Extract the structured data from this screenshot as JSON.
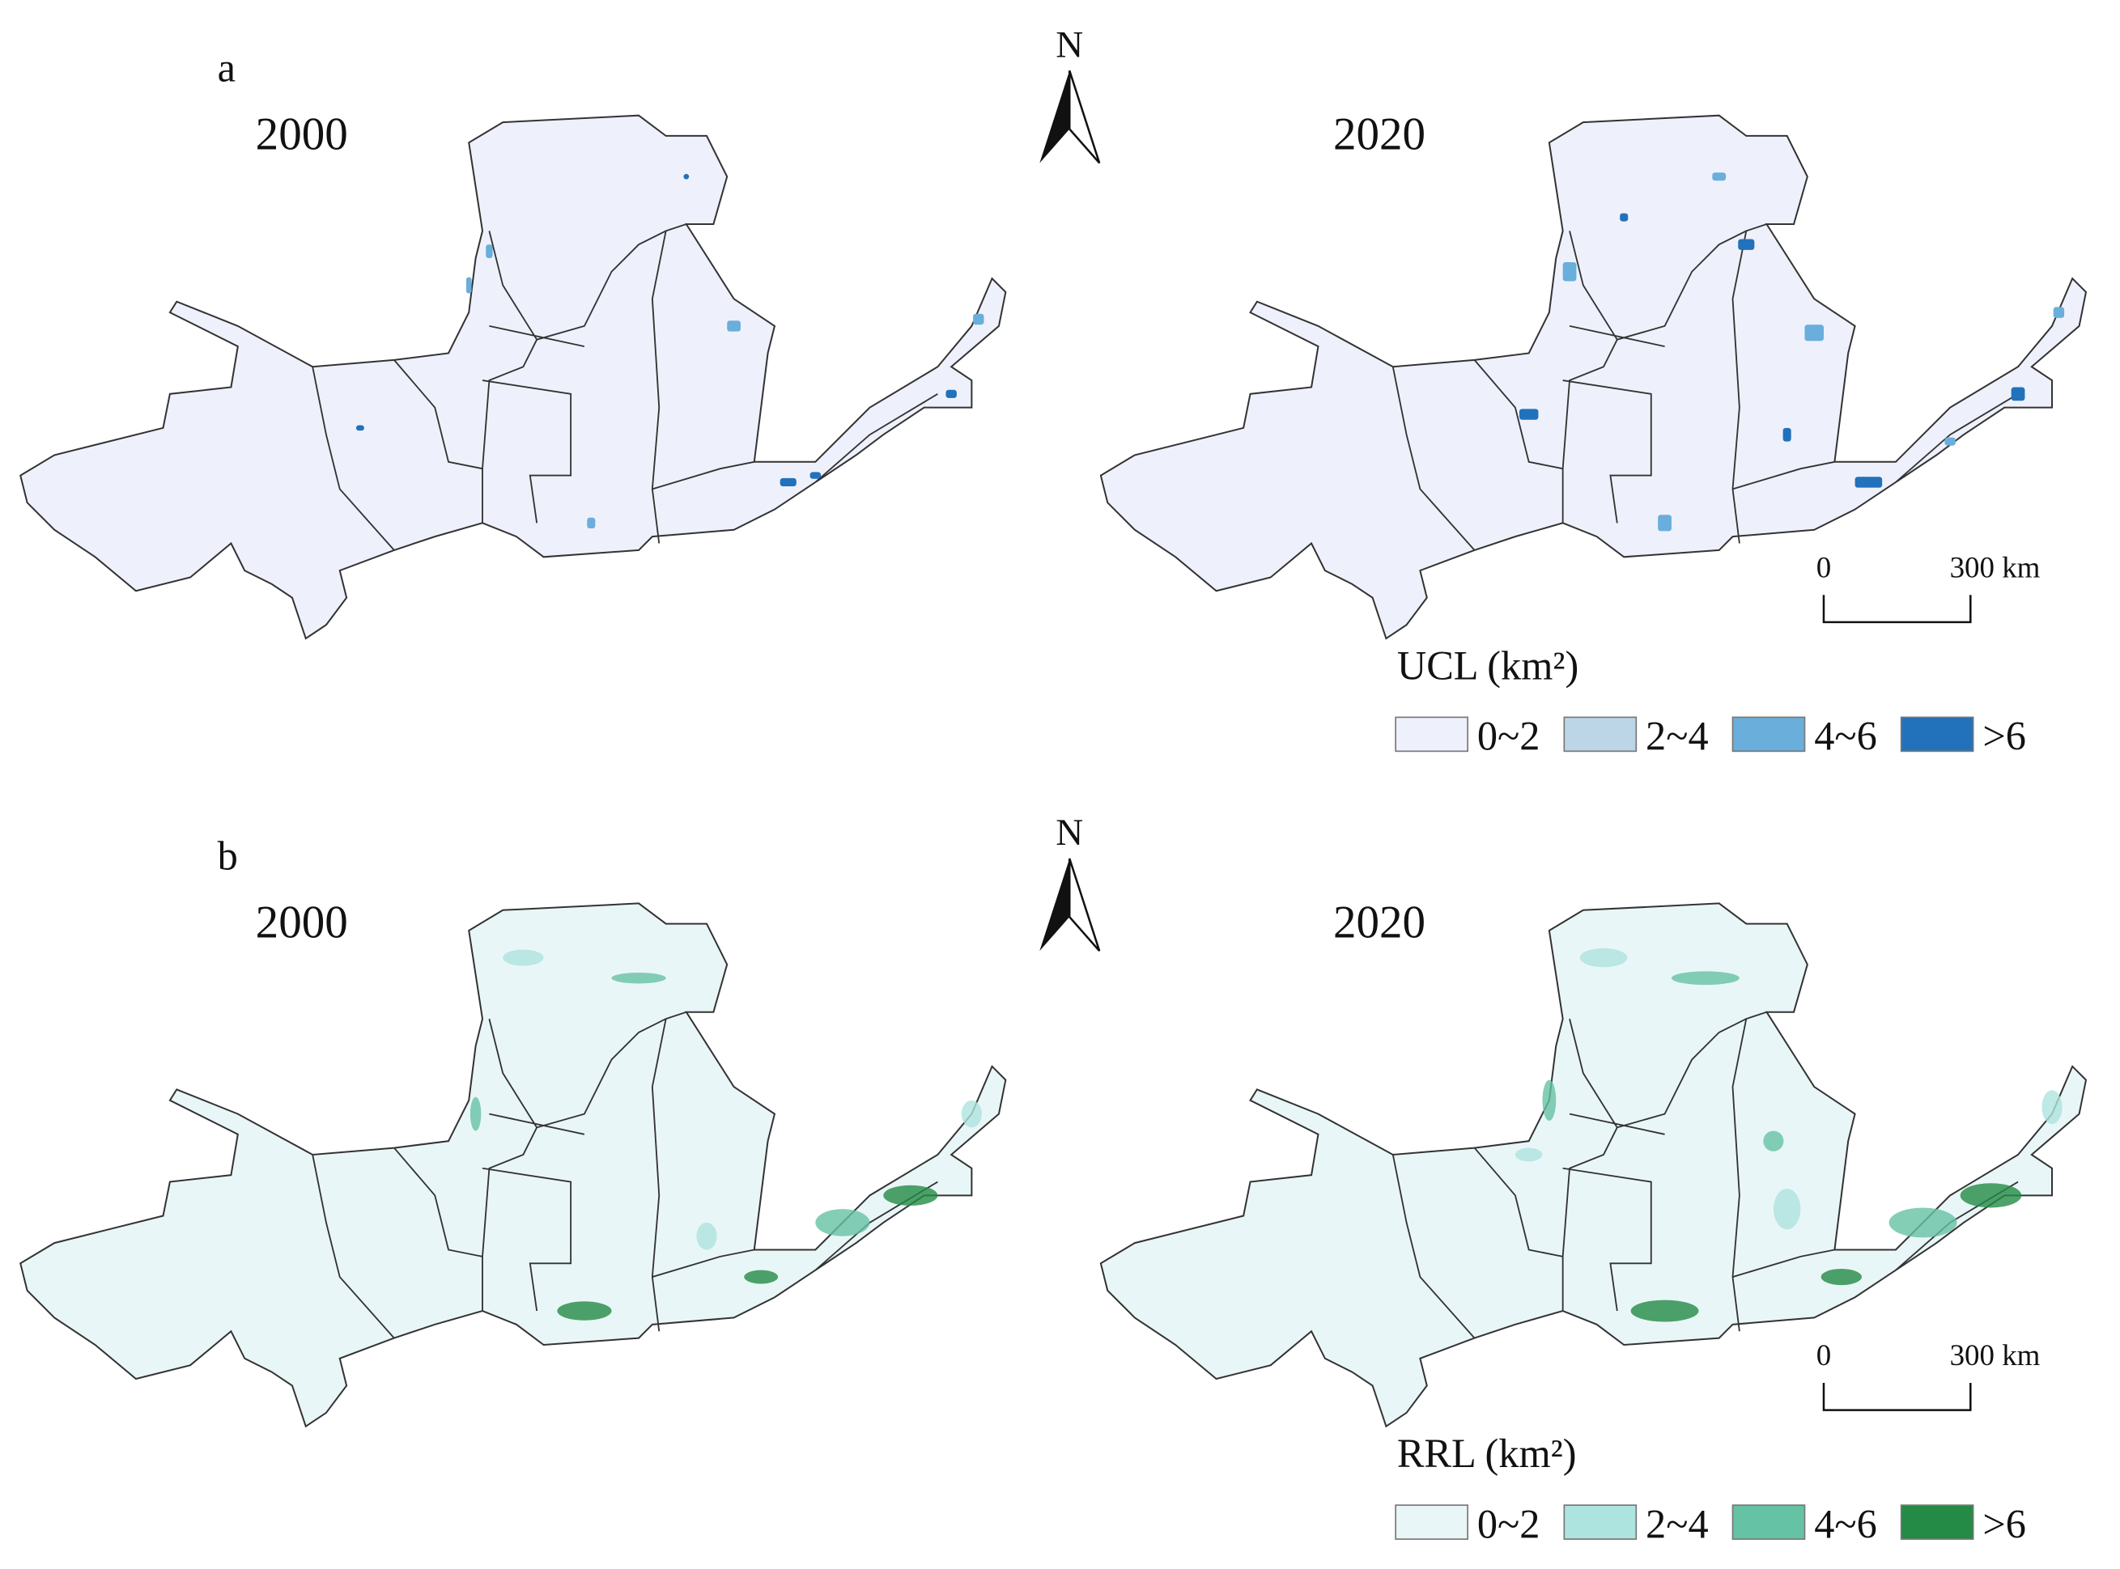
{
  "panels": [
    {
      "label": "a",
      "maps": [
        "2000",
        "2020"
      ],
      "north": "N",
      "scale_bar": [
        "0",
        "300 km"
      ],
      "fill": "#eef1fb",
      "legend": {
        "title": "UCL (km²)",
        "items": [
          {
            "label": "0~2",
            "color": "#eef1fb"
          },
          {
            "label": "2~4",
            "color": "#bcd6e8"
          },
          {
            "label": "4~6",
            "color": "#6aaedb"
          },
          {
            "label": ">6",
            "color": "#2271bb"
          }
        ]
      }
    },
    {
      "label": "b",
      "maps": [
        "2000",
        "2020"
      ],
      "north": "N",
      "scale_bar": [
        "0",
        "300 km"
      ],
      "fill": "#e9f6f7",
      "legend": {
        "title": "RRL (km²)",
        "items": [
          {
            "label": "0~2",
            "color": "#e9f6f7"
          },
          {
            "label": "2~4",
            "color": "#aee4df"
          },
          {
            "label": "4~6",
            "color": "#66c2a4"
          },
          {
            "label": ">6",
            "color": "#238b45"
          }
        ]
      }
    }
  ]
}
